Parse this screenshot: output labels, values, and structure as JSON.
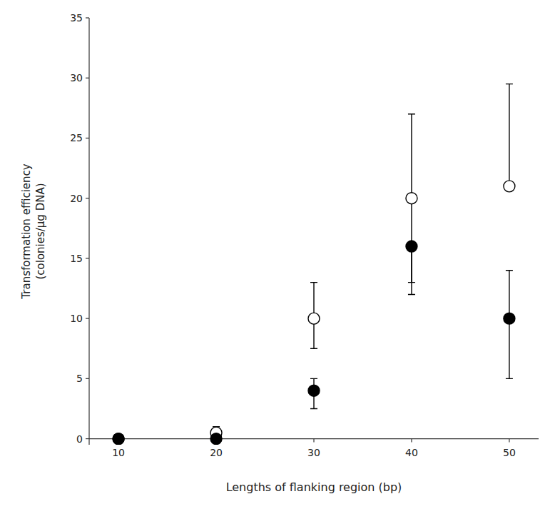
{
  "chart_data": {
    "type": "scatter",
    "xlabel": "Lengths of flanking region (bp)",
    "ylabel": "Transformation efficiency\n(colonies/μg DNA)",
    "x": [
      10,
      20,
      30,
      40,
      50
    ],
    "series": [
      {
        "color": "white",
        "marker": "circle",
        "values": [
          0,
          0.5,
          10,
          20,
          21
        ],
        "yerr_lo": [
          0,
          0,
          2.5,
          7,
          0
        ],
        "yerr_hi": [
          0,
          0.5,
          3,
          7,
          8.5
        ]
      },
      {
        "color": "black",
        "marker": "circle",
        "values": [
          0,
          0,
          4,
          16,
          10
        ],
        "yerr_lo": [
          0,
          0,
          1.5,
          4,
          5
        ],
        "yerr_hi": [
          0,
          0,
          1,
          0,
          4
        ]
      }
    ],
    "xlim": [
      7,
      53
    ],
    "ylim": [
      -0.5,
      35
    ],
    "xticks": [
      10,
      20,
      30,
      40,
      50
    ],
    "yticks": [
      0,
      5,
      10,
      15,
      20,
      25,
      30,
      35
    ],
    "grid": false
  }
}
